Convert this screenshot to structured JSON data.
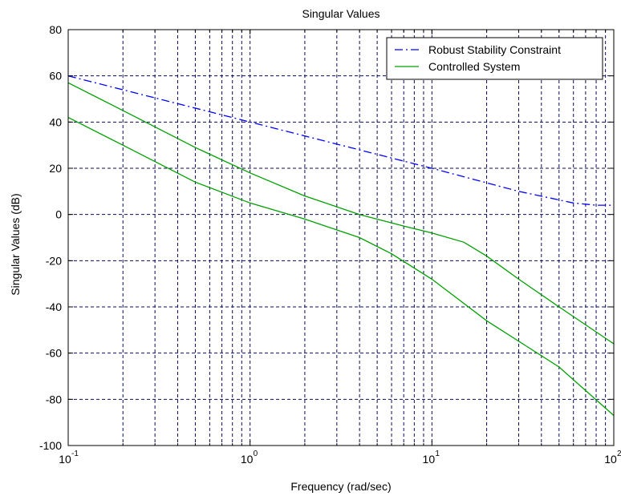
{
  "chart_data": {
    "type": "line",
    "title": "Singular Values",
    "xlabel": "Frequency (rad/sec)",
    "ylabel": "Singular Values (dB)",
    "xscale": "log",
    "xlim": [
      0.1,
      100
    ],
    "ylim": [
      -100,
      80
    ],
    "grid": true,
    "x_tick_labels": [
      {
        "base": "10",
        "exp": "-1"
      },
      {
        "base": "10",
        "exp": "0"
      },
      {
        "base": "10",
        "exp": "1"
      },
      {
        "base": "10",
        "exp": "2"
      }
    ],
    "y_tick_labels": [
      "-100",
      "-80",
      "-60",
      "-40",
      "-20",
      "0",
      "20",
      "40",
      "60",
      "80"
    ],
    "legend_position": "top-right",
    "series": [
      {
        "name": "Robust Stability Constraint",
        "color": "#0000ff",
        "style": "dash-dot",
        "points": [
          {
            "x": 0.1,
            "y": 60
          },
          {
            "x": 1,
            "y": 40
          },
          {
            "x": 10,
            "y": 20
          },
          {
            "x": 30,
            "y": 10
          },
          {
            "x": 60,
            "y": 5
          },
          {
            "x": 80,
            "y": 4
          },
          {
            "x": 100,
            "y": 4
          }
        ]
      },
      {
        "name": "Controlled System",
        "color": "#00a000",
        "style": "solid",
        "points": [
          {
            "x": 0.1,
            "y": 57
          },
          {
            "x": 0.2,
            "y": 45
          },
          {
            "x": 0.5,
            "y": 29
          },
          {
            "x": 1,
            "y": 18
          },
          {
            "x": 2,
            "y": 8
          },
          {
            "x": 4,
            "y": 0
          },
          {
            "x": 7,
            "y": -5
          },
          {
            "x": 10,
            "y": -8
          },
          {
            "x": 15,
            "y": -12
          },
          {
            "x": 20,
            "y": -18
          },
          {
            "x": 30,
            "y": -28
          },
          {
            "x": 50,
            "y": -40
          },
          {
            "x": 100,
            "y": -56
          }
        ]
      },
      {
        "color": "#00a000",
        "style": "solid",
        "points": [
          {
            "x": 0.1,
            "y": 42
          },
          {
            "x": 0.2,
            "y": 30
          },
          {
            "x": 0.5,
            "y": 14
          },
          {
            "x": 1,
            "y": 5
          },
          {
            "x": 2,
            "y": -2
          },
          {
            "x": 4,
            "y": -10
          },
          {
            "x": 6,
            "y": -17
          },
          {
            "x": 10,
            "y": -28
          },
          {
            "x": 20,
            "y": -46
          },
          {
            "x": 50,
            "y": -66
          },
          {
            "x": 100,
            "y": -87
          }
        ]
      }
    ]
  }
}
